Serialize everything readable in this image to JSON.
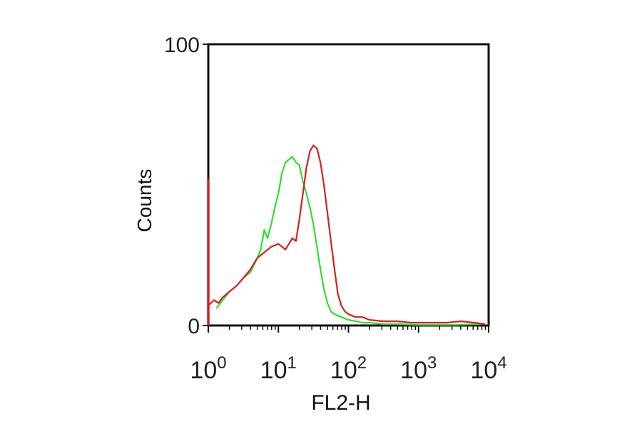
{
  "chart_data": {
    "type": "line",
    "title": "",
    "xlabel": "FL2-H",
    "ylabel": "Counts",
    "x_scale": "log",
    "xlim": [
      1,
      10000
    ],
    "ylim": [
      0,
      100
    ],
    "x_ticks": [
      {
        "base": "10",
        "exp": "0"
      },
      {
        "base": "10",
        "exp": "1"
      },
      {
        "base": "10",
        "exp": "2"
      },
      {
        "base": "10",
        "exp": "3"
      },
      {
        "base": "10",
        "exp": "4"
      }
    ],
    "y_ticks": [
      "100",
      "0"
    ],
    "grid": false,
    "legend": "none",
    "series": [
      {
        "color": "#33dd33",
        "x": [
          1.3,
          1.6,
          2.0,
          2.5,
          3.2,
          4.0,
          5.0,
          5.6,
          6.3,
          7.0,
          7.9,
          8.9,
          10,
          11.2,
          12.6,
          14.1,
          15.8,
          17.8,
          20,
          22.4,
          25.1,
          28.2,
          31.6,
          35.5,
          39.8,
          44.7,
          50.1,
          56.2,
          63.1,
          79.4,
          100,
          126,
          158,
          200,
          316,
          501,
          1000,
          3162,
          7943
        ],
        "y": [
          6,
          9,
          12,
          14,
          17,
          19,
          24,
          27,
          34,
          31,
          36,
          42,
          47,
          54,
          58,
          59,
          60,
          58,
          57,
          51,
          47,
          42,
          36,
          28,
          20,
          13,
          8,
          5,
          4,
          3,
          2,
          1.5,
          1,
          1,
          0.5,
          0.5,
          0.2,
          0.2,
          0.5
        ]
      },
      {
        "color": "#d42020",
        "x": [
          1.0,
          1.2,
          1.4,
          1.6,
          2.0,
          2.5,
          3.2,
          4.0,
          5.0,
          6.3,
          7.9,
          10,
          12.6,
          15.8,
          17.8,
          20,
          22.4,
          25.1,
          28.2,
          31.6,
          35.5,
          39.8,
          44.7,
          50.1,
          56.2,
          63.1,
          70.8,
          79.4,
          89.1,
          100,
          126,
          158,
          200,
          316,
          501,
          794,
          1259,
          2512,
          3981,
          6310,
          8913
        ],
        "y": [
          7,
          9,
          8,
          10,
          12,
          14,
          17,
          20,
          24,
          26,
          28,
          29,
          27,
          31,
          30,
          38,
          47,
          56,
          62,
          64,
          63,
          58,
          50,
          40,
          30,
          20,
          11,
          7,
          5,
          4,
          3,
          3,
          2,
          1.5,
          1.5,
          1,
          1,
          1,
          1.5,
          1,
          0.5
        ]
      },
      {
        "color": "#d42020",
        "x": [
          1.0,
          1.0
        ],
        "y": [
          0,
          52
        ]
      }
    ]
  }
}
